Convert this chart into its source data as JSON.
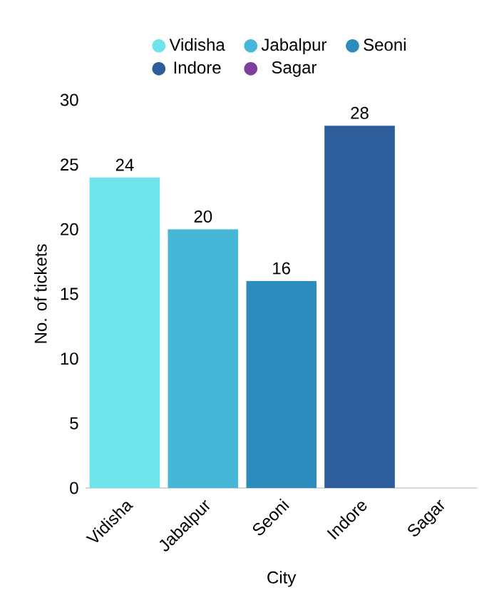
{
  "chart_data": {
    "type": "bar",
    "xlabel": "City",
    "ylabel": "No. of tickets",
    "categories": [
      "Vidisha",
      "Jabalpur",
      "Seoni",
      "Indore",
      "Sagar"
    ],
    "series": [
      {
        "name": "Vidisha",
        "color": "#6ee3e9",
        "values": [
          24,
          null,
          null,
          null,
          null
        ],
        "value_labels": [
          "24",
          null,
          null,
          null,
          null
        ]
      },
      {
        "name": "Jabalpur",
        "color": "#47b7d8",
        "values": [
          null,
          20,
          null,
          null,
          null
        ],
        "value_labels": [
          null,
          "20",
          null,
          null,
          null
        ]
      },
      {
        "name": "Seoni",
        "color": "#2d8bbd",
        "values": [
          null,
          null,
          16,
          null,
          null
        ],
        "value_labels": [
          null,
          null,
          "16",
          null,
          null
        ]
      },
      {
        "name": "Indore",
        "color": "#2d5d9a",
        "values": [
          null,
          null,
          null,
          28,
          null
        ],
        "value_labels": [
          null,
          null,
          null,
          "28",
          null
        ]
      },
      {
        "name": "Sagar",
        "color": "#7d3f9e",
        "values": [
          null,
          null,
          null,
          null,
          0
        ],
        "value_labels": [
          null,
          null,
          null,
          null,
          null
        ]
      }
    ],
    "ylim": [
      0,
      30
    ],
    "yticks": [
      0,
      5,
      10,
      15,
      20,
      25,
      30
    ],
    "legend": "top",
    "marker": "circle"
  }
}
